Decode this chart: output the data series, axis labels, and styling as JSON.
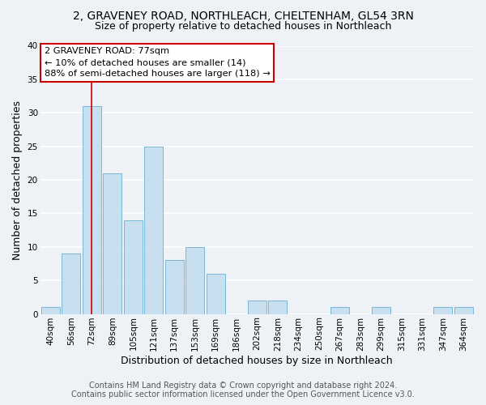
{
  "title1": "2, GRAVENEY ROAD, NORTHLEACH, CHELTENHAM, GL54 3RN",
  "title2": "Size of property relative to detached houses in Northleach",
  "xlabel": "Distribution of detached houses by size in Northleach",
  "ylabel": "Number of detached properties",
  "bin_labels": [
    "40sqm",
    "56sqm",
    "72sqm",
    "89sqm",
    "105sqm",
    "121sqm",
    "137sqm",
    "153sqm",
    "169sqm",
    "186sqm",
    "202sqm",
    "218sqm",
    "234sqm",
    "250sqm",
    "267sqm",
    "283sqm",
    "299sqm",
    "315sqm",
    "331sqm",
    "347sqm",
    "364sqm"
  ],
  "bar_values": [
    1,
    9,
    31,
    21,
    14,
    25,
    8,
    10,
    6,
    0,
    2,
    2,
    0,
    0,
    1,
    0,
    1,
    0,
    0,
    1,
    1
  ],
  "bar_color": "#c8dff0",
  "bar_edge_color": "#7ab8d9",
  "ylim": [
    0,
    40
  ],
  "yticks": [
    0,
    5,
    10,
    15,
    20,
    25,
    30,
    35,
    40
  ],
  "property_line_x": 2,
  "annotation_title": "2 GRAVENEY ROAD: 77sqm",
  "annotation_line1": "← 10% of detached houses are smaller (14)",
  "annotation_line2": "88% of semi-detached houses are larger (118) →",
  "annotation_box_color": "#ffffff",
  "annotation_box_edge": "#cc0000",
  "property_line_color": "#cc0000",
  "footer1": "Contains HM Land Registry data © Crown copyright and database right 2024.",
  "footer2": "Contains public sector information licensed under the Open Government Licence v3.0.",
  "background_color": "#eef2f7",
  "grid_color": "#ffffff",
  "title1_fontsize": 10,
  "title2_fontsize": 9,
  "axis_label_fontsize": 9,
  "tick_fontsize": 7.5,
  "footer_fontsize": 7
}
